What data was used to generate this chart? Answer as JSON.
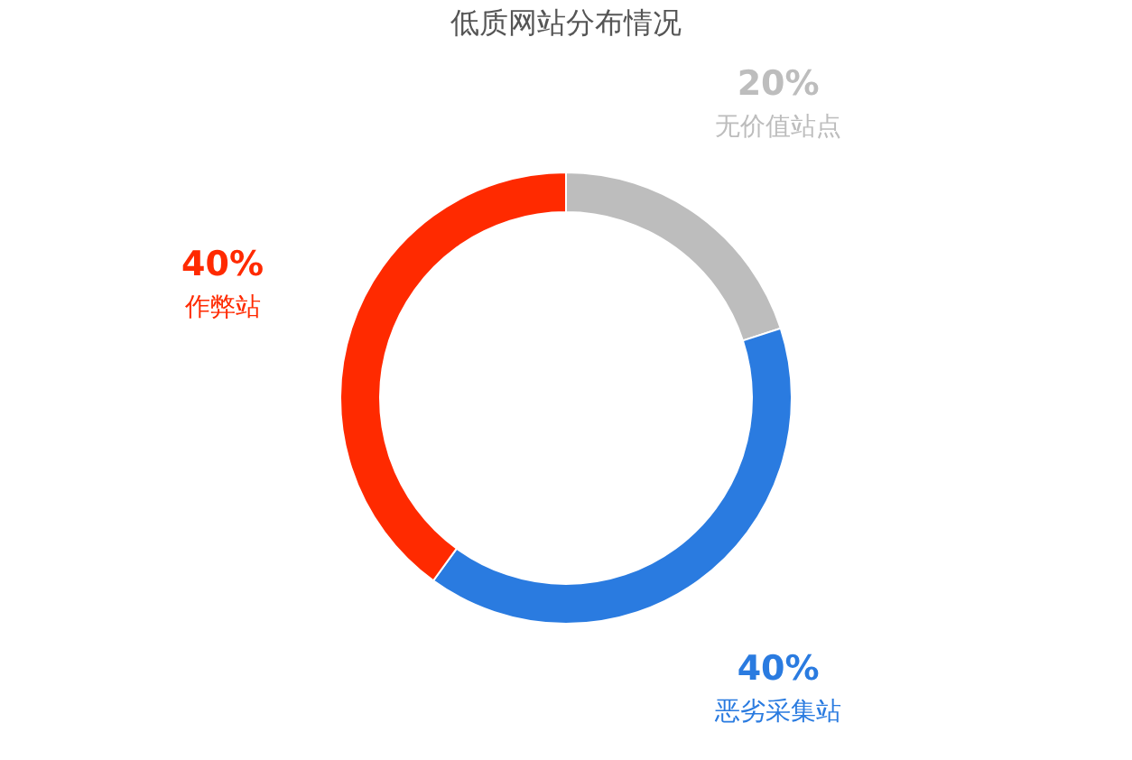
{
  "chart_data": {
    "type": "donut",
    "title": "低质网站分布情况",
    "categories": [
      "无价值站点",
      "恶劣采集站",
      "作弊站"
    ],
    "values": [
      20,
      40,
      40
    ],
    "colors": [
      "#bdbdbd",
      "#2a7be0",
      "#ff2a00"
    ],
    "value_labels": [
      "20%",
      "40%",
      "40%"
    ]
  }
}
